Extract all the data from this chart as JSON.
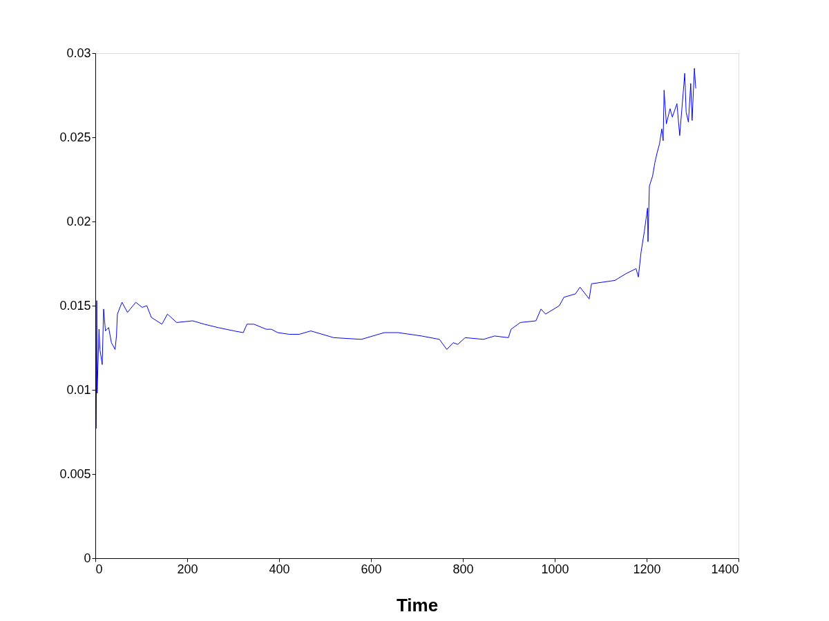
{
  "chart_data": {
    "type": "line",
    "xlabel": "Time",
    "xlim": [
      0,
      1400
    ],
    "xticks": [
      0,
      200,
      400,
      600,
      800,
      1000,
      1200,
      1400
    ],
    "ylim": [
      0,
      0.03
    ],
    "yticks": [
      0,
      0.005,
      0.01,
      0.015,
      0.02,
      0.025,
      0.03
    ],
    "grid": false,
    "legend": false,
    "marker": "none",
    "line_style": "solid",
    "series": [
      {
        "color": "#0000ff",
        "x": [
          2,
          3,
          4,
          8,
          10,
          15,
          18,
          22,
          29,
          35,
          43,
          46,
          48,
          58,
          70,
          88,
          102,
          112,
          122,
          145,
          157,
          177,
          212,
          237,
          267,
          302,
          322,
          330,
          345,
          372,
          383,
          397,
          422,
          444,
          469,
          519,
          579,
          629,
          659,
          710,
          749,
          765,
          779,
          789,
          805,
          845,
          869,
          899,
          905,
          925,
          959,
          970,
          980,
          1010,
          1020,
          1045,
          1055,
          1075,
          1080,
          1131,
          1155,
          1177,
          1182,
          1188,
          1195,
          1202,
          1203,
          1206,
          1213,
          1218,
          1223,
          1228,
          1233,
          1236,
          1238,
          1243,
          1251,
          1256,
          1266,
          1272,
          1283,
          1286,
          1291,
          1296,
          1299,
          1304,
          1307
        ],
        "values": [
          0.0077,
          0.0153,
          0.0098,
          0.0136,
          0.0124,
          0.0115,
          0.0148,
          0.0135,
          0.0137,
          0.0128,
          0.0124,
          0.0132,
          0.0145,
          0.0152,
          0.0146,
          0.0152,
          0.0149,
          0.015,
          0.0143,
          0.0139,
          0.0145,
          0.014,
          0.0141,
          0.0139,
          0.0137,
          0.0135,
          0.0134,
          0.0139,
          0.0139,
          0.0136,
          0.0136,
          0.0134,
          0.0133,
          0.0133,
          0.0135,
          0.0131,
          0.013,
          0.0134,
          0.0134,
          0.0132,
          0.013,
          0.0124,
          0.0128,
          0.0127,
          0.0131,
          0.013,
          0.0132,
          0.0131,
          0.0136,
          0.014,
          0.0141,
          0.0148,
          0.0145,
          0.015,
          0.0155,
          0.0157,
          0.0161,
          0.0154,
          0.0163,
          0.0165,
          0.0169,
          0.0172,
          0.0167,
          0.0182,
          0.0194,
          0.0208,
          0.0188,
          0.0221,
          0.0227,
          0.0235,
          0.0241,
          0.0246,
          0.0255,
          0.0248,
          0.0278,
          0.0258,
          0.0267,
          0.0262,
          0.027,
          0.0251,
          0.0288,
          0.0265,
          0.0259,
          0.0282,
          0.026,
          0.0291,
          0.0279
        ]
      }
    ]
  }
}
